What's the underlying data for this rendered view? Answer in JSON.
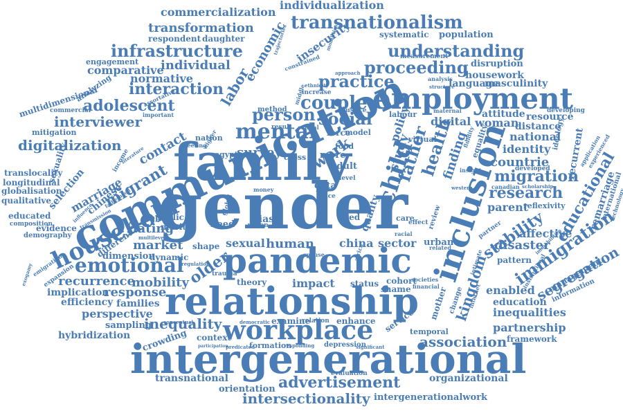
{
  "colors": {
    "text": "#4a7cb5",
    "background": "#ffffff"
  },
  "words": {
    "gender": "gender",
    "family": "family",
    "communication": "communication",
    "intergenerational": "intergenerational",
    "relationship": "relationship",
    "pandemic": "pandemic",
    "inclusion": "inclusion",
    "employment": "employment",
    "workplace": "workplace",
    "household": "household",
    "mental": "mental",
    "emotional": "emotional",
    "child": "child",
    "transnationalism": "transnationalism",
    "infrastructure": "infrastructure",
    "understanding": "understanding",
    "proceeding": "proceeding",
    "practice": "practice",
    "couple": "couple",
    "person": "person",
    "social": "social",
    "work": "work",
    "interaction": "interaction",
    "adolescent": "adolescent",
    "interviewer": "interviewer",
    "digitalization": "digitalization",
    "migrant": "migrant",
    "advertisement": "advertisement",
    "intersectionality": "intersectionality",
    "association": "association",
    "inequality": "inequality",
    "research": "research",
    "migration": "migration",
    "immigration": "immigration",
    "stability": "stability",
    "educational": "educational",
    "segregation": "segregation",
    "kingdom": "kingdom",
    "health": "health",
    "father": "father",
    "labor": "labor",
    "economic": "economic",
    "commercialization": "commercialization",
    "individualization": "individualization",
    "transformation": "transformation",
    "individual": "individual",
    "comparative": "comparative",
    "normative": "normative",
    "insecurity": "insecurity",
    "population": "population",
    "systematic": "systematic",
    "disruption": "disruption",
    "housework": "housework",
    "language": "language",
    "masculinity": "masculinity",
    "multidimensional": "multidimensional",
    "longitudinal": "longitudinal",
    "globalisation": "globalisation",
    "qualitative": "qualitative",
    "translocality": "translocality",
    "marriage": "marriage",
    "selection": "selection",
    "chinese": "chinese",
    "contact": "contact",
    "dating": "dating",
    "market": "market",
    "recurrence": "recurrence",
    "mobility": "mobility",
    "implication": "implication",
    "response": "response",
    "efficiency": "efficiency",
    "families": "families",
    "perspective": "perspective",
    "sampling": "sampling",
    "hybridization": "hybridization",
    "crowding": "crowding",
    "transnational": "transnational",
    "orientation": "orientation",
    "intergenerationalwork": "intergenerationalwork",
    "organizational": "organizational",
    "partnership": "partnership",
    "framework": "framework",
    "inequalities": "inequalities",
    "education": "education",
    "enabled": "enabled",
    "management": "management",
    "disaster": "disaster",
    "affective": "affective",
    "parent": "parent",
    "countrie": "countrie",
    "identity": "identity",
    "national": "national",
    "distance": "distance",
    "woman": "woman",
    "resource": "resource",
    "attitude": "attitude",
    "recurrent": "recurrent",
    "digital": "digital",
    "finding": "finding",
    "study": "study",
    "policy": "policy",
    "survey": "survey",
    "human": "human",
    "china": "china",
    "sector": "sector",
    "sexual": "sexual",
    "bias": "bias",
    "older": "older",
    "impact": "impact",
    "status": "status",
    "context": "context",
    "theory": "theory",
    "shape": "shape",
    "dimension": "dimension",
    "dynamic": "dynamic",
    "different": "different",
    "public": "public",
    "marital": "marital",
    "need": "need",
    "evidence": "evidence",
    "composition": "composition",
    "demography": "demography",
    "sexuality": "sexuality",
    "educated": "educated",
    "respondent": "respondent",
    "daughter": "daughter",
    "engagement": "engagement",
    "analyzing": "analyzing",
    "mitigation": "mitigation",
    "commercial": "commercial",
    "quality": "quality",
    "service": "service",
    "mother": "mother",
    "reflexivity": "reflexivity",
    "remarriage": "remarriage",
    "international": "international",
    "information": "information",
    "pattern": "pattern",
    "developing": "developing",
    "measurement": "measurement",
    "adult": "adult",
    "data": "data",
    "more": "more",
    "cross": "cross",
    "egypt": "egypt",
    "nation": "nation",
    "force": "force",
    "model": "model",
    "food": "food",
    "urban": "urban",
    "enhance": "enhance",
    "examine": "examine",
    "relation": "relation",
    "formation": "formation",
    "depression": "depression",
    "cohort": "cohort",
    "shame": "shame",
    "temporal": "temporal",
    "method": "method",
    "result": "result",
    "justice": "justice",
    "couple_small": "analysis",
    "structure": "structure",
    "ideology": "ideology",
    "developed": "developed",
    "canadian": "canadian",
    "assortative": "assortative",
    "important": "important",
    "exogamy": "exogamy",
    "expansion": "expansion",
    "emigration": "emigration",
    "trauma": "trauma",
    "increase": "increase",
    "ethnicity": "ethnicity",
    "level": "level",
    "life": "life",
    "face": "face",
    "aged": "aged",
    "care": "care",
    "effect": "effect",
    "internet": "internet",
    "change": "change",
    "africa": "africa",
    "financial": "financial",
    "societies": "societies",
    "evaluation": "evaluation",
    "significant": "significant",
    "responding": "responding",
    "predicated": "predicated",
    "democratic": "democratic",
    "participation": "participation",
    "virtual": "virtual",
    "labour": "labour",
    "capital": "capital",
    "middle": "middle",
    "global": "global",
    "money": "money",
    "constrained": "constrained",
    "approach": "approach",
    "maternal": "maternal",
    "income": "income",
    "fatherhood": "fatherhood",
    "transmission": "transmission",
    "influence": "influence",
    "vision": "vision",
    "multilevel": "multilevel",
    "conceptual": "conceptual",
    "regulation": "regulation",
    "spouse": "spouse",
    "meeting": "meeting",
    "higher": "higher",
    "institutional": "institutional",
    "review": "review",
    "partner": "partner",
    "equality": "equality",
    "scholarship": "scholarship",
    "intimate": "intimate",
    "western": "western",
    "related": "related",
    "insight": "insight",
    "fluidity": "fluidity",
    "trajectories": "trajectories",
    "mobilities": "mobilities",
    "literature": "literature",
    "technology": "technology",
    "application": "application",
    "experienced": "experienced",
    "immobilities": "immobilities",
    "racial": "racial"
  }
}
